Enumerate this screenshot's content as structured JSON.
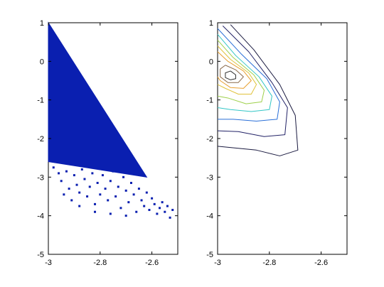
{
  "figure": {
    "background": "#ffffff"
  },
  "chart_data": [
    {
      "type": "scatter",
      "xlim": [
        -3,
        -2.5
      ],
      "ylim": [
        -5,
        1
      ],
      "x_ticks": [
        -3,
        -2.8,
        -2.6
      ],
      "x_tick_labels": [
        "-3",
        "-2.8",
        "-2.6"
      ],
      "y_ticks": [
        1,
        0,
        -1,
        -2,
        -3,
        -4,
        -5
      ],
      "y_tick_labels": [
        "1",
        "0",
        "-1",
        "-2",
        "-3",
        "-4",
        "-5"
      ],
      "grid": false,
      "marker": "dot",
      "marker_color": "#0a1fb0",
      "dense_region": {
        "shape": "triangle",
        "vertices": [
          [
            -3.0,
            1.0
          ],
          [
            -2.62,
            -3.0
          ],
          [
            -3.0,
            -2.6
          ]
        ]
      },
      "sparse_points": [
        [
          -2.98,
          -2.75
        ],
        [
          -2.96,
          -2.9
        ],
        [
          -2.95,
          -3.1
        ],
        [
          -2.93,
          -2.85
        ],
        [
          -2.92,
          -3.3
        ],
        [
          -2.91,
          -3.6
        ],
        [
          -2.9,
          -2.95
        ],
        [
          -2.89,
          -3.2
        ],
        [
          -2.88,
          -3.4
        ],
        [
          -2.87,
          -2.8
        ],
        [
          -2.86,
          -3.05
        ],
        [
          -2.85,
          -3.5
        ],
        [
          -2.84,
          -3.25
        ],
        [
          -2.83,
          -2.9
        ],
        [
          -2.82,
          -3.7
        ],
        [
          -2.81,
          -3.15
        ],
        [
          -2.8,
          -3.45
        ],
        [
          -2.79,
          -2.95
        ],
        [
          -2.78,
          -3.3
        ],
        [
          -2.77,
          -3.6
        ],
        [
          -2.76,
          -3.1
        ],
        [
          -2.75,
          -2.85
        ],
        [
          -2.74,
          -3.5
        ],
        [
          -2.73,
          -3.25
        ],
        [
          -2.72,
          -3.8
        ],
        [
          -2.71,
          -3.0
        ],
        [
          -2.7,
          -3.35
        ],
        [
          -2.69,
          -3.65
        ],
        [
          -2.68,
          -3.15
        ],
        [
          -2.67,
          -3.45
        ],
        [
          -2.66,
          -3.9
        ],
        [
          -2.65,
          -3.3
        ],
        [
          -2.64,
          -3.6
        ],
        [
          -2.63,
          -3.75
        ],
        [
          -2.62,
          -3.4
        ],
        [
          -2.61,
          -3.85
        ],
        [
          -2.6,
          -3.55
        ],
        [
          -2.59,
          -3.7
        ],
        [
          -2.58,
          -3.95
        ],
        [
          -2.57,
          -3.8
        ],
        [
          -2.56,
          -3.65
        ],
        [
          -2.55,
          -3.9
        ],
        [
          -2.54,
          -3.75
        ],
        [
          -2.53,
          -4.05
        ],
        [
          -2.52,
          -3.85
        ],
        [
          -2.94,
          -3.45
        ],
        [
          -2.88,
          -3.75
        ],
        [
          -2.82,
          -3.9
        ],
        [
          -2.76,
          -3.95
        ],
        [
          -2.7,
          -4.0
        ]
      ]
    },
    {
      "type": "contour",
      "xlim": [
        -3,
        -2.5
      ],
      "ylim": [
        -5,
        1
      ],
      "x_ticks": [
        -3,
        -2.8,
        -2.6
      ],
      "x_tick_labels": [
        "-3",
        "-2.8",
        "-2.6"
      ],
      "y_ticks": [
        1,
        0,
        -1,
        -2,
        -3,
        -4,
        -5
      ],
      "y_tick_labels": [
        "1",
        "0",
        "-1",
        "-2",
        "-3",
        "-4",
        "-5"
      ],
      "grid": false,
      "levels": [
        {
          "color": "#1a1a40",
          "points": [
            [
              -2.95,
              0.95
            ],
            [
              -2.86,
              0.3
            ],
            [
              -2.76,
              -0.6
            ],
            [
              -2.7,
              -1.4
            ],
            [
              -2.69,
              -2.3
            ],
            [
              -2.76,
              -2.45
            ],
            [
              -2.85,
              -2.3
            ],
            [
              -3.0,
              -2.2
            ]
          ]
        },
        {
          "color": "#222266",
          "points": [
            [
              -2.98,
              0.92
            ],
            [
              -2.88,
              0.25
            ],
            [
              -2.79,
              -0.55
            ],
            [
              -2.73,
              -1.2
            ],
            [
              -2.74,
              -1.9
            ],
            [
              -2.82,
              -1.95
            ],
            [
              -2.92,
              -1.82
            ],
            [
              -3.0,
              -1.8
            ]
          ]
        },
        {
          "color": "#2a6fd8",
          "points": [
            [
              -3.0,
              0.85
            ],
            [
              -2.91,
              0.2
            ],
            [
              -2.81,
              -0.45
            ],
            [
              -2.76,
              -1.05
            ],
            [
              -2.77,
              -1.5
            ],
            [
              -2.85,
              -1.55
            ],
            [
              -2.94,
              -1.5
            ],
            [
              -3.0,
              -1.5
            ]
          ]
        },
        {
          "color": "#33c6c6",
          "points": [
            [
              -3.0,
              0.7
            ],
            [
              -2.93,
              0.15
            ],
            [
              -2.84,
              -0.4
            ],
            [
              -2.79,
              -0.9
            ],
            [
              -2.8,
              -1.25
            ],
            [
              -2.87,
              -1.3
            ],
            [
              -2.95,
              -1.25
            ],
            [
              -3.0,
              -1.2
            ]
          ]
        },
        {
          "color": "#9ed04a",
          "points": [
            [
              -3.0,
              0.55
            ],
            [
              -2.94,
              0.1
            ],
            [
              -2.86,
              -0.35
            ],
            [
              -2.82,
              -0.75
            ],
            [
              -2.83,
              -1.05
            ],
            [
              -2.89,
              -1.1
            ],
            [
              -2.96,
              -0.95
            ],
            [
              -3.0,
              -0.9
            ]
          ]
        },
        {
          "color": "#e0c23a",
          "points": [
            [
              -3.0,
              0.4
            ],
            [
              -2.95,
              0.05
            ],
            [
              -2.88,
              -0.3
            ],
            [
              -2.85,
              -0.6
            ],
            [
              -2.87,
              -0.85
            ],
            [
              -2.92,
              -0.85
            ],
            [
              -2.97,
              -0.7
            ],
            [
              -3.0,
              -0.6
            ]
          ]
        },
        {
          "color": "#e8a030",
          "points": [
            [
              -3.0,
              0.25
            ],
            [
              -2.96,
              0.0
            ],
            [
              -2.9,
              -0.25
            ],
            [
              -2.87,
              -0.5
            ],
            [
              -2.9,
              -0.7
            ],
            [
              -2.95,
              -0.68
            ],
            [
              -2.99,
              -0.5
            ],
            [
              -3.0,
              -0.4
            ]
          ]
        },
        {
          "color": "#8a6a4a",
          "points": [
            [
              -2.97,
              -0.1
            ],
            [
              -2.93,
              -0.22
            ],
            [
              -2.9,
              -0.4
            ],
            [
              -2.92,
              -0.55
            ],
            [
              -2.96,
              -0.55
            ],
            [
              -2.99,
              -0.4
            ],
            [
              -2.99,
              -0.2
            ],
            [
              -2.97,
              -0.1
            ]
          ]
        },
        {
          "color": "#303030",
          "points": [
            [
              -2.95,
              -0.25
            ],
            [
              -2.93,
              -0.35
            ],
            [
              -2.93,
              -0.45
            ],
            [
              -2.95,
              -0.48
            ],
            [
              -2.97,
              -0.42
            ],
            [
              -2.97,
              -0.3
            ],
            [
              -2.95,
              -0.25
            ]
          ]
        }
      ]
    }
  ]
}
